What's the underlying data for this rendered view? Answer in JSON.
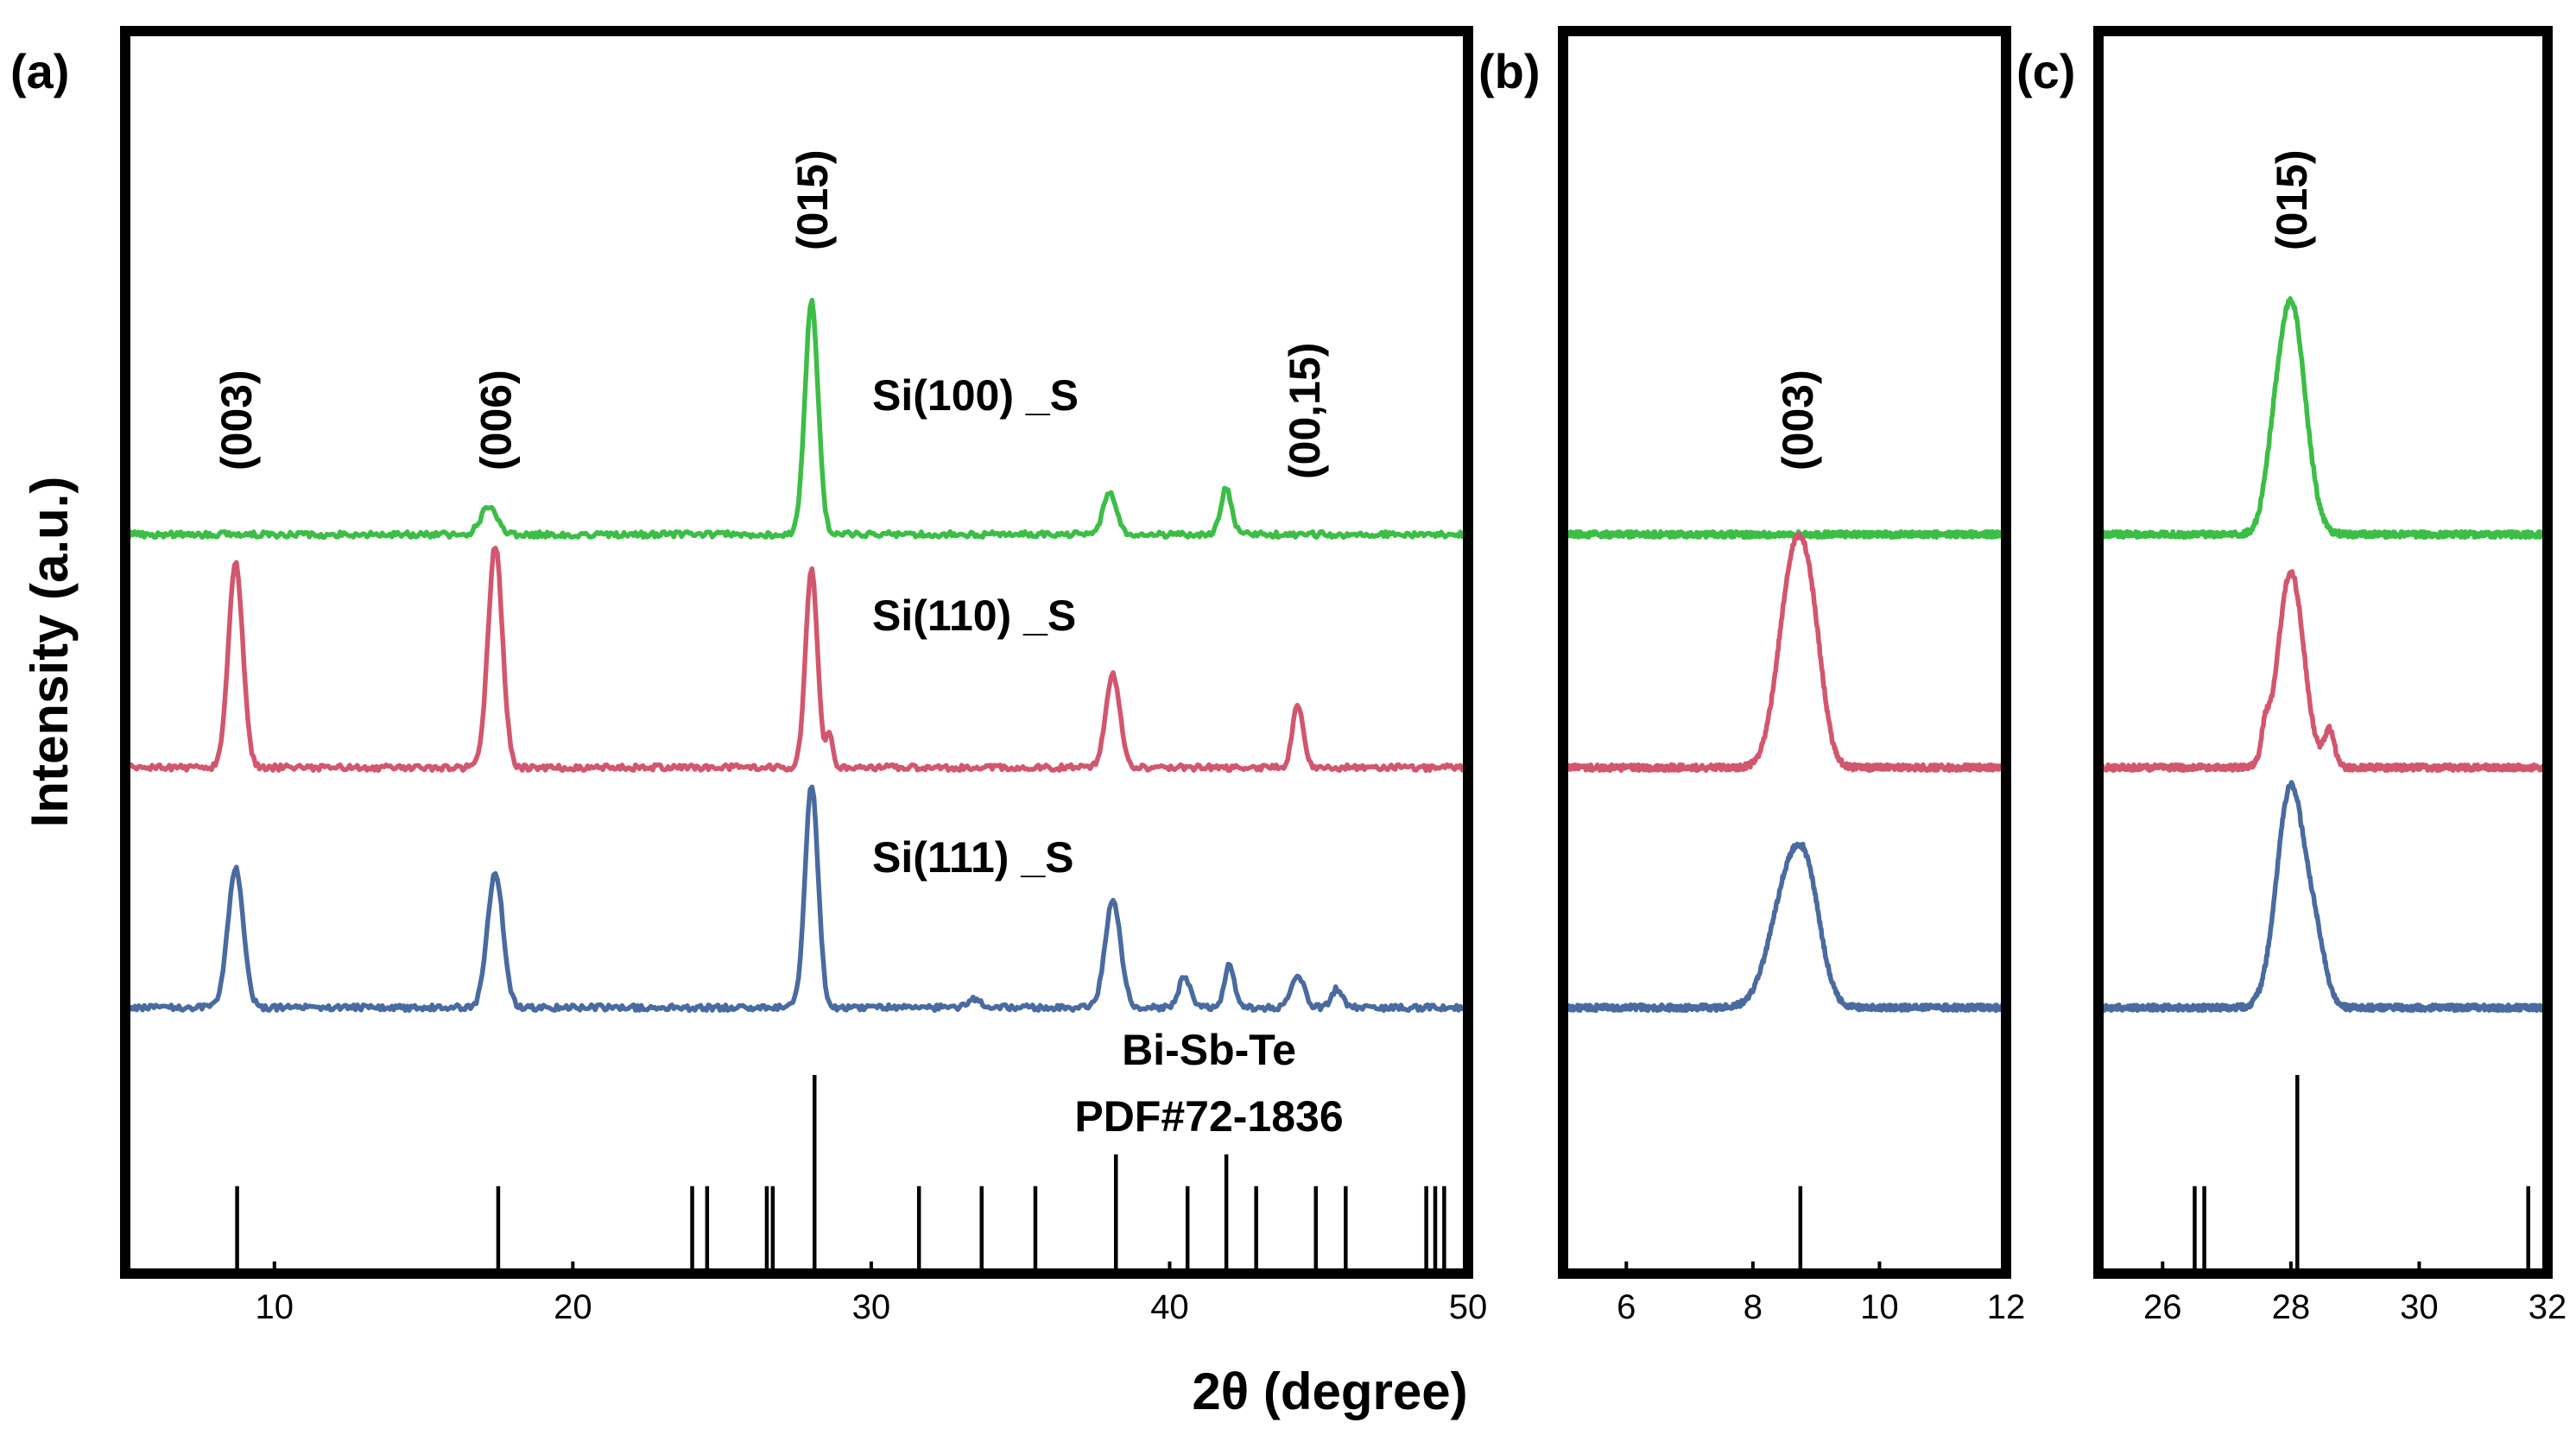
{
  "chart_data": [
    {
      "panel": "(a)",
      "type": "line",
      "xlim": [
        5,
        50
      ],
      "xticks": [
        "10",
        "20",
        "30",
        "40",
        "50"
      ],
      "xlabel": "2θ (degree)",
      "ylabel": "Intensity (a.u.)",
      "y_ticks_labeled": false,
      "series": [
        {
          "name": "Si(100) _S",
          "color": "#3cbe46",
          "peaks": [
            {
              "x": 17.2,
              "h": 0.12,
              "w": 0.28
            },
            {
              "x": 28.0,
              "h": 1.0,
              "w": 0.22
            },
            {
              "x": 38.0,
              "h": 0.18,
              "w": 0.22
            },
            {
              "x": 41.9,
              "h": 0.2,
              "w": 0.18
            }
          ]
        },
        {
          "name": "Si(110) _S",
          "color": "#d2566e",
          "peaks": [
            {
              "x": 8.7,
              "h": 0.88,
              "w": 0.24
            },
            {
              "x": 17.4,
              "h": 0.95,
              "w": 0.24
            },
            {
              "x": 28.0,
              "h": 0.85,
              "w": 0.2
            },
            {
              "x": 28.6,
              "h": 0.15,
              "w": 0.1
            },
            {
              "x": 38.1,
              "h": 0.4,
              "w": 0.24
            },
            {
              "x": 44.3,
              "h": 0.27,
              "w": 0.18
            }
          ]
        },
        {
          "name": "Si(111) _S",
          "color": "#4a6ba0",
          "peaks": [
            {
              "x": 8.7,
              "h": 0.6,
              "w": 0.26
            },
            {
              "x": 17.4,
              "h": 0.58,
              "w": 0.26
            },
            {
              "x": 28.0,
              "h": 0.95,
              "w": 0.22
            },
            {
              "x": 33.5,
              "h": 0.04,
              "w": 0.2
            },
            {
              "x": 38.1,
              "h": 0.46,
              "w": 0.26
            },
            {
              "x": 40.5,
              "h": 0.13,
              "w": 0.2
            },
            {
              "x": 42.0,
              "h": 0.19,
              "w": 0.16
            },
            {
              "x": 44.3,
              "h": 0.13,
              "w": 0.22
            },
            {
              "x": 45.6,
              "h": 0.08,
              "w": 0.18
            }
          ]
        }
      ],
      "reference": {
        "label_line1": "Bi-Sb-Te",
        "label_line2": "PDF#72-1836",
        "lines": [
          {
            "x": 8.75,
            "h": 0.44
          },
          {
            "x": 17.5,
            "h": 0.44
          },
          {
            "x": 24.0,
            "h": 0.44
          },
          {
            "x": 24.5,
            "h": 0.44
          },
          {
            "x": 26.5,
            "h": 0.44
          },
          {
            "x": 26.7,
            "h": 0.44
          },
          {
            "x": 28.1,
            "h": 1.0
          },
          {
            "x": 31.6,
            "h": 0.44
          },
          {
            "x": 33.7,
            "h": 0.44
          },
          {
            "x": 35.5,
            "h": 0.44
          },
          {
            "x": 38.2,
            "h": 0.6
          },
          {
            "x": 40.6,
            "h": 0.44
          },
          {
            "x": 41.9,
            "h": 0.6
          },
          {
            "x": 42.9,
            "h": 0.44
          },
          {
            "x": 44.9,
            "h": 0.44
          },
          {
            "x": 45.9,
            "h": 0.44
          },
          {
            "x": 48.6,
            "h": 0.44
          },
          {
            "x": 48.9,
            "h": 0.44
          },
          {
            "x": 49.2,
            "h": 0.44
          }
        ]
      },
      "peak_labels": [
        {
          "text": "(003)",
          "x": 8.7
        },
        {
          "text": "(006)",
          "x": 17.4
        },
        {
          "text": "(015)",
          "x": 28.0
        },
        {
          "text": "(00,15)",
          "x": 44.5
        }
      ]
    },
    {
      "panel": "(b)",
      "type": "line",
      "xlim": [
        5,
        12
      ],
      "xticks": [
        "6",
        "8",
        "10",
        "12"
      ],
      "series": [
        {
          "name": "Si(100) _S",
          "color": "#3cbe46",
          "peaks": []
        },
        {
          "name": "Si(110) _S",
          "color": "#d2566e",
          "peaks": [
            {
              "x": 8.65,
              "h": 0.88,
              "w": 0.24
            },
            {
              "x": 8.95,
              "h": 0.35,
              "w": 0.18
            }
          ]
        },
        {
          "name": "Si(111) _S",
          "color": "#4a6ba0",
          "peaks": [
            {
              "x": 8.6,
              "h": 0.58,
              "w": 0.3
            },
            {
              "x": 8.9,
              "h": 0.25,
              "w": 0.2
            }
          ]
        }
      ],
      "reference": {
        "lines": [
          {
            "x": 8.75,
            "h": 0.44
          }
        ]
      },
      "peak_labels": [
        {
          "text": "(003)",
          "x": 8.7
        }
      ]
    },
    {
      "panel": "(c)",
      "type": "line",
      "xlim": [
        25,
        32
      ],
      "xticks": [
        "26",
        "28",
        "30",
        "32"
      ],
      "series": [
        {
          "name": "Si(100) _S",
          "color": "#3cbe46",
          "peaks": [
            {
              "x": 28.0,
              "h": 1.0,
              "w": 0.22
            },
            {
              "x": 27.7,
              "h": 0.1,
              "w": 0.12
            }
          ]
        },
        {
          "name": "Si(110) _S",
          "color": "#d2566e",
          "peaks": [
            {
              "x": 28.0,
              "h": 0.84,
              "w": 0.2
            },
            {
              "x": 28.6,
              "h": 0.16,
              "w": 0.08
            },
            {
              "x": 27.6,
              "h": 0.12,
              "w": 0.06
            }
          ]
        },
        {
          "name": "Si(111) _S",
          "color": "#4a6ba0",
          "peaks": [
            {
              "x": 28.0,
              "h": 0.95,
              "w": 0.22
            },
            {
              "x": 28.4,
              "h": 0.22,
              "w": 0.15
            }
          ]
        }
      ],
      "reference": {
        "lines": [
          {
            "x": 26.5,
            "h": 0.44
          },
          {
            "x": 26.65,
            "h": 0.44
          },
          {
            "x": 28.1,
            "h": 1.0
          },
          {
            "x": 31.7,
            "h": 0.44
          }
        ]
      },
      "peak_labels": [
        {
          "text": "(015)",
          "x": 28.0
        }
      ]
    }
  ]
}
